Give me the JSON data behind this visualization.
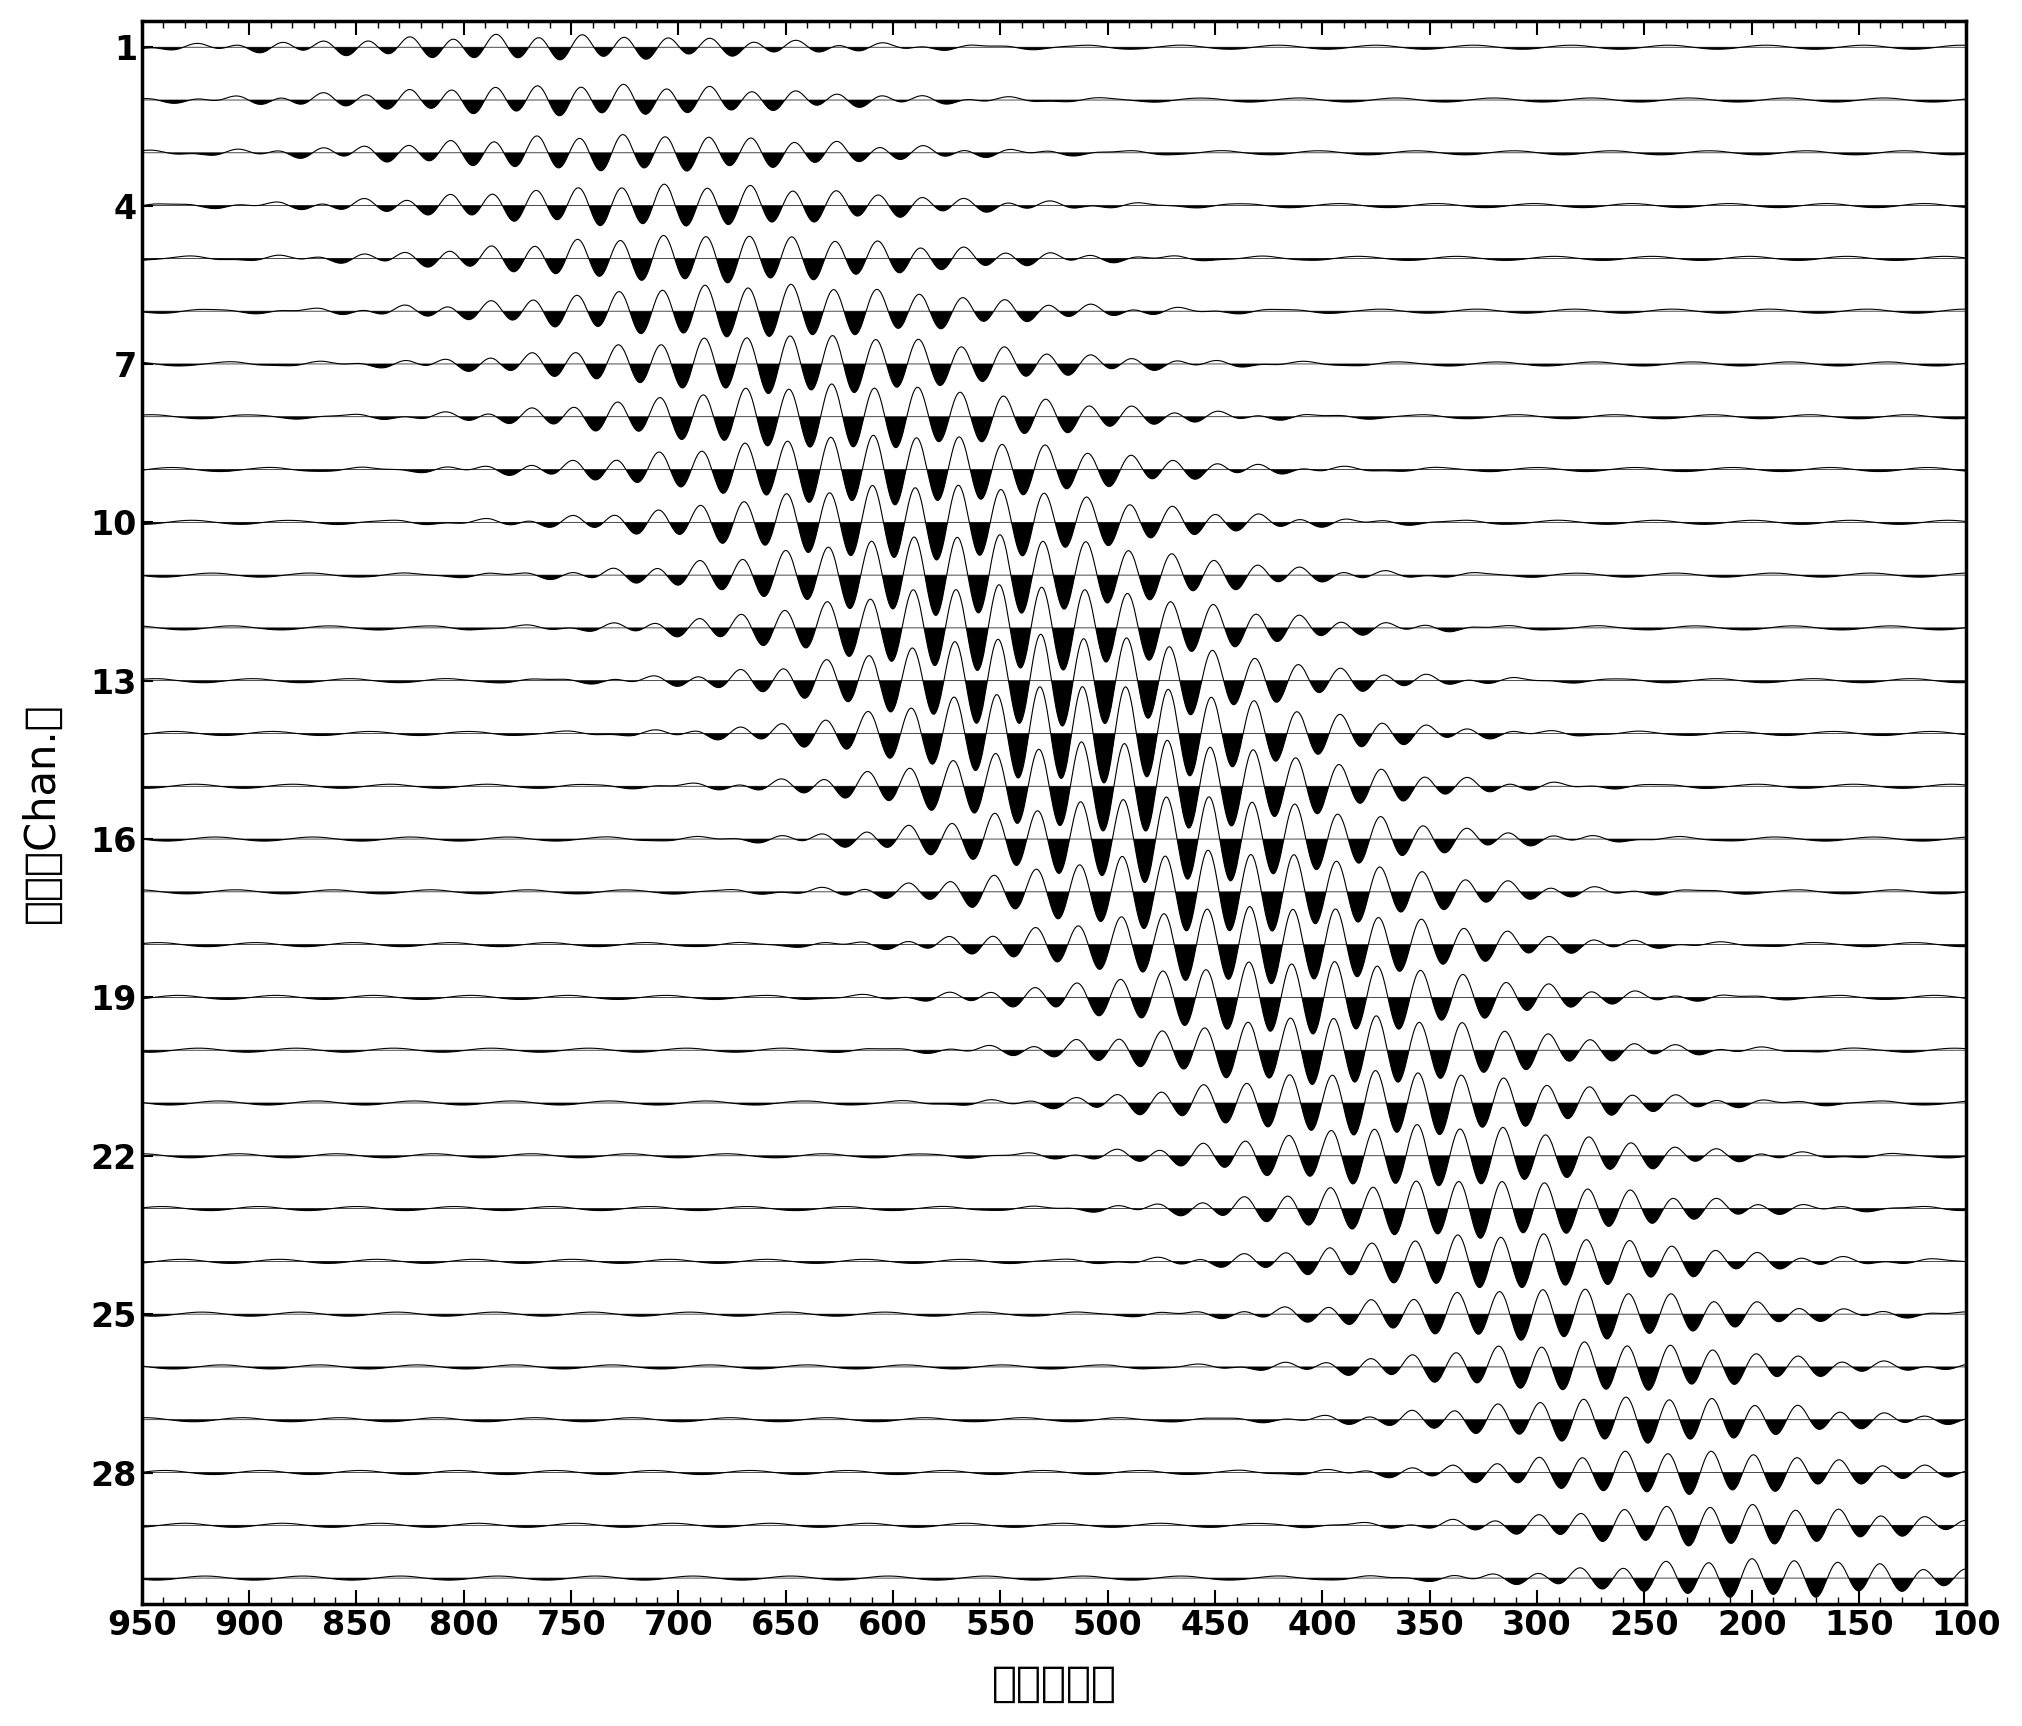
{
  "n_channels": 30,
  "time_start": 950,
  "time_end": 100,
  "x_ticks": [
    950,
    900,
    850,
    800,
    750,
    700,
    650,
    600,
    550,
    500,
    450,
    400,
    350,
    300,
    250,
    200,
    150,
    100
  ],
  "y_ticks": [
    1,
    4,
    7,
    10,
    13,
    16,
    19,
    22,
    25,
    28
  ],
  "xlabel": "时间（秒）",
  "ylabel": "通道（Chan.）",
  "background_color": "#ffffff",
  "line_color": "#000000",
  "fill_color": "#000000",
  "t_peak_ch1": 760,
  "t_peak_ch30": 195,
  "wave_freq": 0.05,
  "sigma_base": 90,
  "noise_freq": 0.022,
  "noise_amp": 0.018,
  "max_amp_channel": 14,
  "max_amp_value": 0.42,
  "min_amp_value": 0.1
}
